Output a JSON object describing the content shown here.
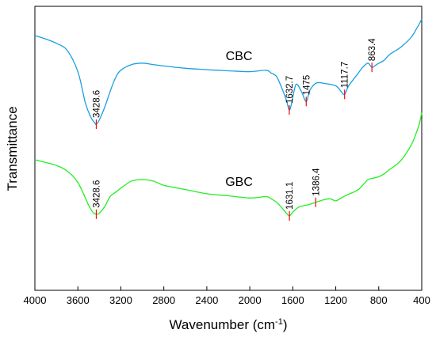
{
  "chart_data": {
    "type": "line",
    "xlabel": "Wavenumber (cm",
    "xlabel_sup": "-1",
    "xlabel_close": ")",
    "ylabel": "Transmittance",
    "xlim": [
      4000,
      400
    ],
    "x_reversed": true,
    "ylim": [
      0,
      1
    ],
    "y_ticks_shown": false,
    "grid": false,
    "xticks": [
      4000,
      3600,
      3200,
      2800,
      2400,
      2000,
      1600,
      1200,
      800,
      400
    ],
    "series": [
      {
        "name": "CBC",
        "color": "#1a9fe0",
        "points": [
          [
            4000,
            0.897
          ],
          [
            3900,
            0.885
          ],
          [
            3800,
            0.87
          ],
          [
            3700,
            0.845
          ],
          [
            3600,
            0.77
          ],
          [
            3530,
            0.66
          ],
          [
            3480,
            0.61
          ],
          [
            3440,
            0.588
          ],
          [
            3428.6,
            0.585
          ],
          [
            3400,
            0.6
          ],
          [
            3350,
            0.645
          ],
          [
            3300,
            0.7
          ],
          [
            3250,
            0.748
          ],
          [
            3200,
            0.775
          ],
          [
            3100,
            0.795
          ],
          [
            3000,
            0.8
          ],
          [
            2900,
            0.795
          ],
          [
            2800,
            0.79
          ],
          [
            2600,
            0.782
          ],
          [
            2400,
            0.777
          ],
          [
            2200,
            0.773
          ],
          [
            2000,
            0.77
          ],
          [
            1850,
            0.775
          ],
          [
            1800,
            0.765
          ],
          [
            1750,
            0.752
          ],
          [
            1700,
            0.71
          ],
          [
            1660,
            0.67
          ],
          [
            1632.7,
            0.635
          ],
          [
            1610,
            0.66
          ],
          [
            1570,
            0.725
          ],
          [
            1520,
            0.7
          ],
          [
            1475,
            0.665
          ],
          [
            1440,
            0.705
          ],
          [
            1380,
            0.73
          ],
          [
            1300,
            0.728
          ],
          [
            1200,
            0.72
          ],
          [
            1150,
            0.7
          ],
          [
            1117.7,
            0.69
          ],
          [
            1080,
            0.72
          ],
          [
            1000,
            0.76
          ],
          [
            950,
            0.785
          ],
          [
            900,
            0.8
          ],
          [
            863.4,
            0.785
          ],
          [
            820,
            0.795
          ],
          [
            750,
            0.81
          ],
          [
            700,
            0.83
          ],
          [
            600,
            0.855
          ],
          [
            500,
            0.89
          ],
          [
            450,
            0.92
          ],
          [
            420,
            0.94
          ],
          [
            400,
            0.955
          ]
        ],
        "peaks": [
          {
            "x": 3428.6,
            "label": "3428.6"
          },
          {
            "x": 1632.7,
            "label": "1632.7"
          },
          {
            "x": 1475,
            "label": "1475"
          },
          {
            "x": 1117.7,
            "label": "1117.7"
          },
          {
            "x": 863.4,
            "label": "863.4"
          }
        ]
      },
      {
        "name": "GBC",
        "color": "#22ee22",
        "points": [
          [
            4000,
            0.46
          ],
          [
            3900,
            0.45
          ],
          [
            3800,
            0.44
          ],
          [
            3700,
            0.42
          ],
          [
            3600,
            0.38
          ],
          [
            3500,
            0.3
          ],
          [
            3460,
            0.275
          ],
          [
            3428.6,
            0.268
          ],
          [
            3400,
            0.272
          ],
          [
            3350,
            0.295
          ],
          [
            3300,
            0.33
          ],
          [
            3250,
            0.345
          ],
          [
            3200,
            0.36
          ],
          [
            3100,
            0.385
          ],
          [
            3000,
            0.39
          ],
          [
            2900,
            0.385
          ],
          [
            2800,
            0.37
          ],
          [
            2600,
            0.355
          ],
          [
            2400,
            0.34
          ],
          [
            2200,
            0.333
          ],
          [
            2000,
            0.325
          ],
          [
            1850,
            0.33
          ],
          [
            1800,
            0.322
          ],
          [
            1750,
            0.31
          ],
          [
            1700,
            0.29
          ],
          [
            1660,
            0.272
          ],
          [
            1631.1,
            0.262
          ],
          [
            1600,
            0.275
          ],
          [
            1550,
            0.292
          ],
          [
            1500,
            0.298
          ],
          [
            1450,
            0.302
          ],
          [
            1386.4,
            0.31
          ],
          [
            1300,
            0.32
          ],
          [
            1250,
            0.322
          ],
          [
            1200,
            0.315
          ],
          [
            1150,
            0.325
          ],
          [
            1100,
            0.335
          ],
          [
            1000,
            0.352
          ],
          [
            950,
            0.37
          ],
          [
            900,
            0.39
          ],
          [
            850,
            0.395
          ],
          [
            800,
            0.4
          ],
          [
            750,
            0.41
          ],
          [
            700,
            0.425
          ],
          [
            600,
            0.455
          ],
          [
            500,
            0.51
          ],
          [
            450,
            0.555
          ],
          [
            420,
            0.59
          ],
          [
            400,
            0.625
          ]
        ],
        "peaks": [
          {
            "x": 3428.6,
            "label": "3428.6"
          },
          {
            "x": 1631.1,
            "label": "1631.1"
          },
          {
            "x": 1386.4,
            "label": "1386.4"
          }
        ]
      }
    ],
    "peak_marker_color": "#ff0000"
  }
}
